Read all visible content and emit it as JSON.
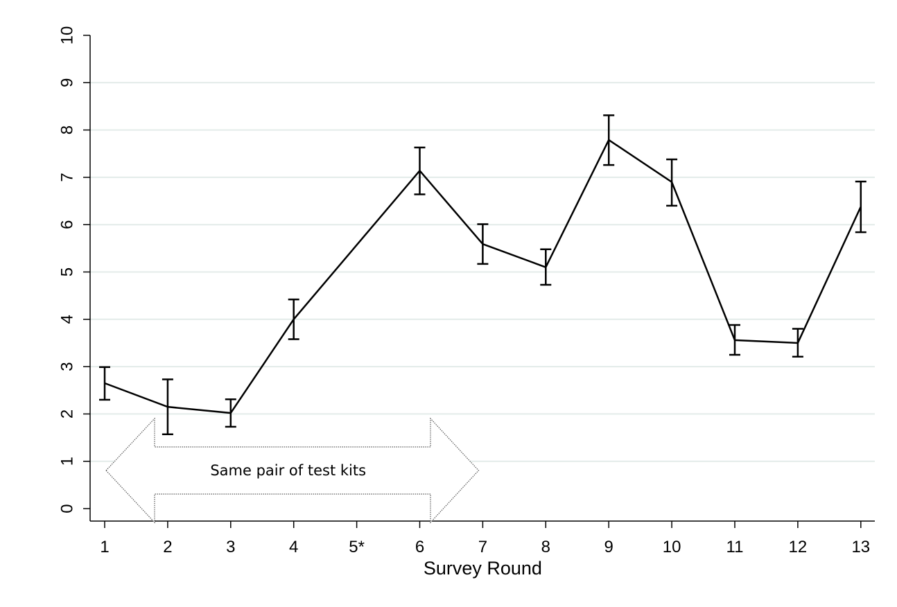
{
  "chart_data": {
    "type": "line",
    "title": "",
    "xlabel": "Survey Round",
    "ylabel": "",
    "categories": [
      "1",
      "2",
      "3",
      "4",
      "5*",
      "6",
      "7",
      "8",
      "9",
      "10",
      "11",
      "12",
      "13"
    ],
    "series": [
      {
        "values": [
          2.65,
          2.15,
          2.02,
          4.0,
          null,
          7.14,
          5.59,
          5.1,
          7.79,
          6.9,
          3.56,
          3.5,
          6.38
        ],
        "error_low": [
          2.3,
          1.57,
          1.73,
          3.58,
          null,
          6.64,
          5.17,
          4.73,
          7.26,
          6.4,
          3.25,
          3.21,
          5.84
        ],
        "error_high": [
          2.99,
          2.73,
          2.31,
          4.42,
          null,
          7.63,
          6.01,
          5.48,
          8.31,
          7.38,
          3.88,
          3.8,
          6.91
        ],
        "color": "#000000"
      }
    ],
    "y_ticks": [
      "0",
      "1",
      "2",
      "3",
      "4",
      "5",
      "6",
      "7",
      "8",
      "9",
      "10"
    ],
    "ylim": [
      0,
      10
    ],
    "grid": true,
    "grid_color": "#e3ebe9",
    "annotation": {
      "text": "Same pair of test kits",
      "from_category": "1",
      "to_category": "7"
    }
  }
}
